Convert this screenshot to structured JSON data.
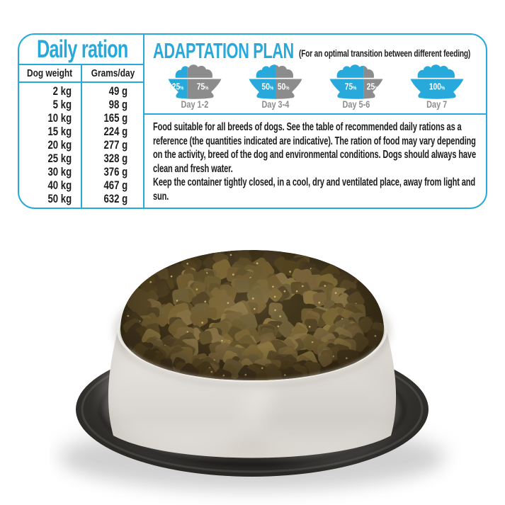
{
  "colors": {
    "accent": "#27a9db",
    "bowl_new_food": "#27a9db",
    "bowl_old_food": "#8c8c8c",
    "day_label": "#8d8d8d",
    "text": "#1d1d1d",
    "photo_steel": "#d9d5cf",
    "photo_rubber": "#33312e",
    "photo_kibble": [
      "#6c5a2f",
      "#7a6535",
      "#5e4d28",
      "#8a7440",
      "#544526",
      "#6f5f38",
      "#77623a",
      "#857044",
      "#63522c",
      "#715c31"
    ],
    "photo_kibble_dark": [
      "#4a3c20",
      "#52431f",
      "#453722",
      "#5a4a27"
    ]
  },
  "daily_ration": {
    "title": "Daily ration",
    "columns": [
      "Dog weight",
      "Grams/day"
    ],
    "rows": [
      [
        "2 kg",
        "49 g"
      ],
      [
        "5 kg",
        "98 g"
      ],
      [
        "10 kg",
        "165 g"
      ],
      [
        "15 kg",
        "224 g"
      ],
      [
        "20 kg",
        "277 g"
      ],
      [
        "25 kg",
        "328 g"
      ],
      [
        "30 kg",
        "376 g"
      ],
      [
        "40 kg",
        "467 g"
      ],
      [
        "50 kg",
        "632 g"
      ]
    ]
  },
  "adaptation_plan": {
    "title": "ADAPTATION PLAN",
    "subtitle": "(For an optimal transition between different feeding)",
    "bowls": [
      {
        "new_pct": 25,
        "new_label": "25%",
        "old_pct": 75,
        "old_label": "75%",
        "day": "Day 1-2"
      },
      {
        "new_pct": 50,
        "new_label": "50%",
        "old_pct": 50,
        "old_label": "50%",
        "day": "Day 3-4"
      },
      {
        "new_pct": 75,
        "new_label": "75%",
        "old_pct": 25,
        "old_label": "25%",
        "day": "Day 5-6"
      },
      {
        "new_pct": 100,
        "new_label": "100%",
        "old_pct": 0,
        "old_label": "",
        "day": "Day 7"
      }
    ]
  },
  "notes": {
    "paragraph1": "Food suitable for all breeds of dogs. See the table of recommended daily rations as a reference (the quantities indicated are indicative). The ration of food may vary depending on the activity, breed of the dog and environmental conditions. Dogs should always have clean and fresh water.",
    "paragraph2": "Keep the container tightly closed, in a cool, dry and ventilated place, away from light and sun."
  }
}
